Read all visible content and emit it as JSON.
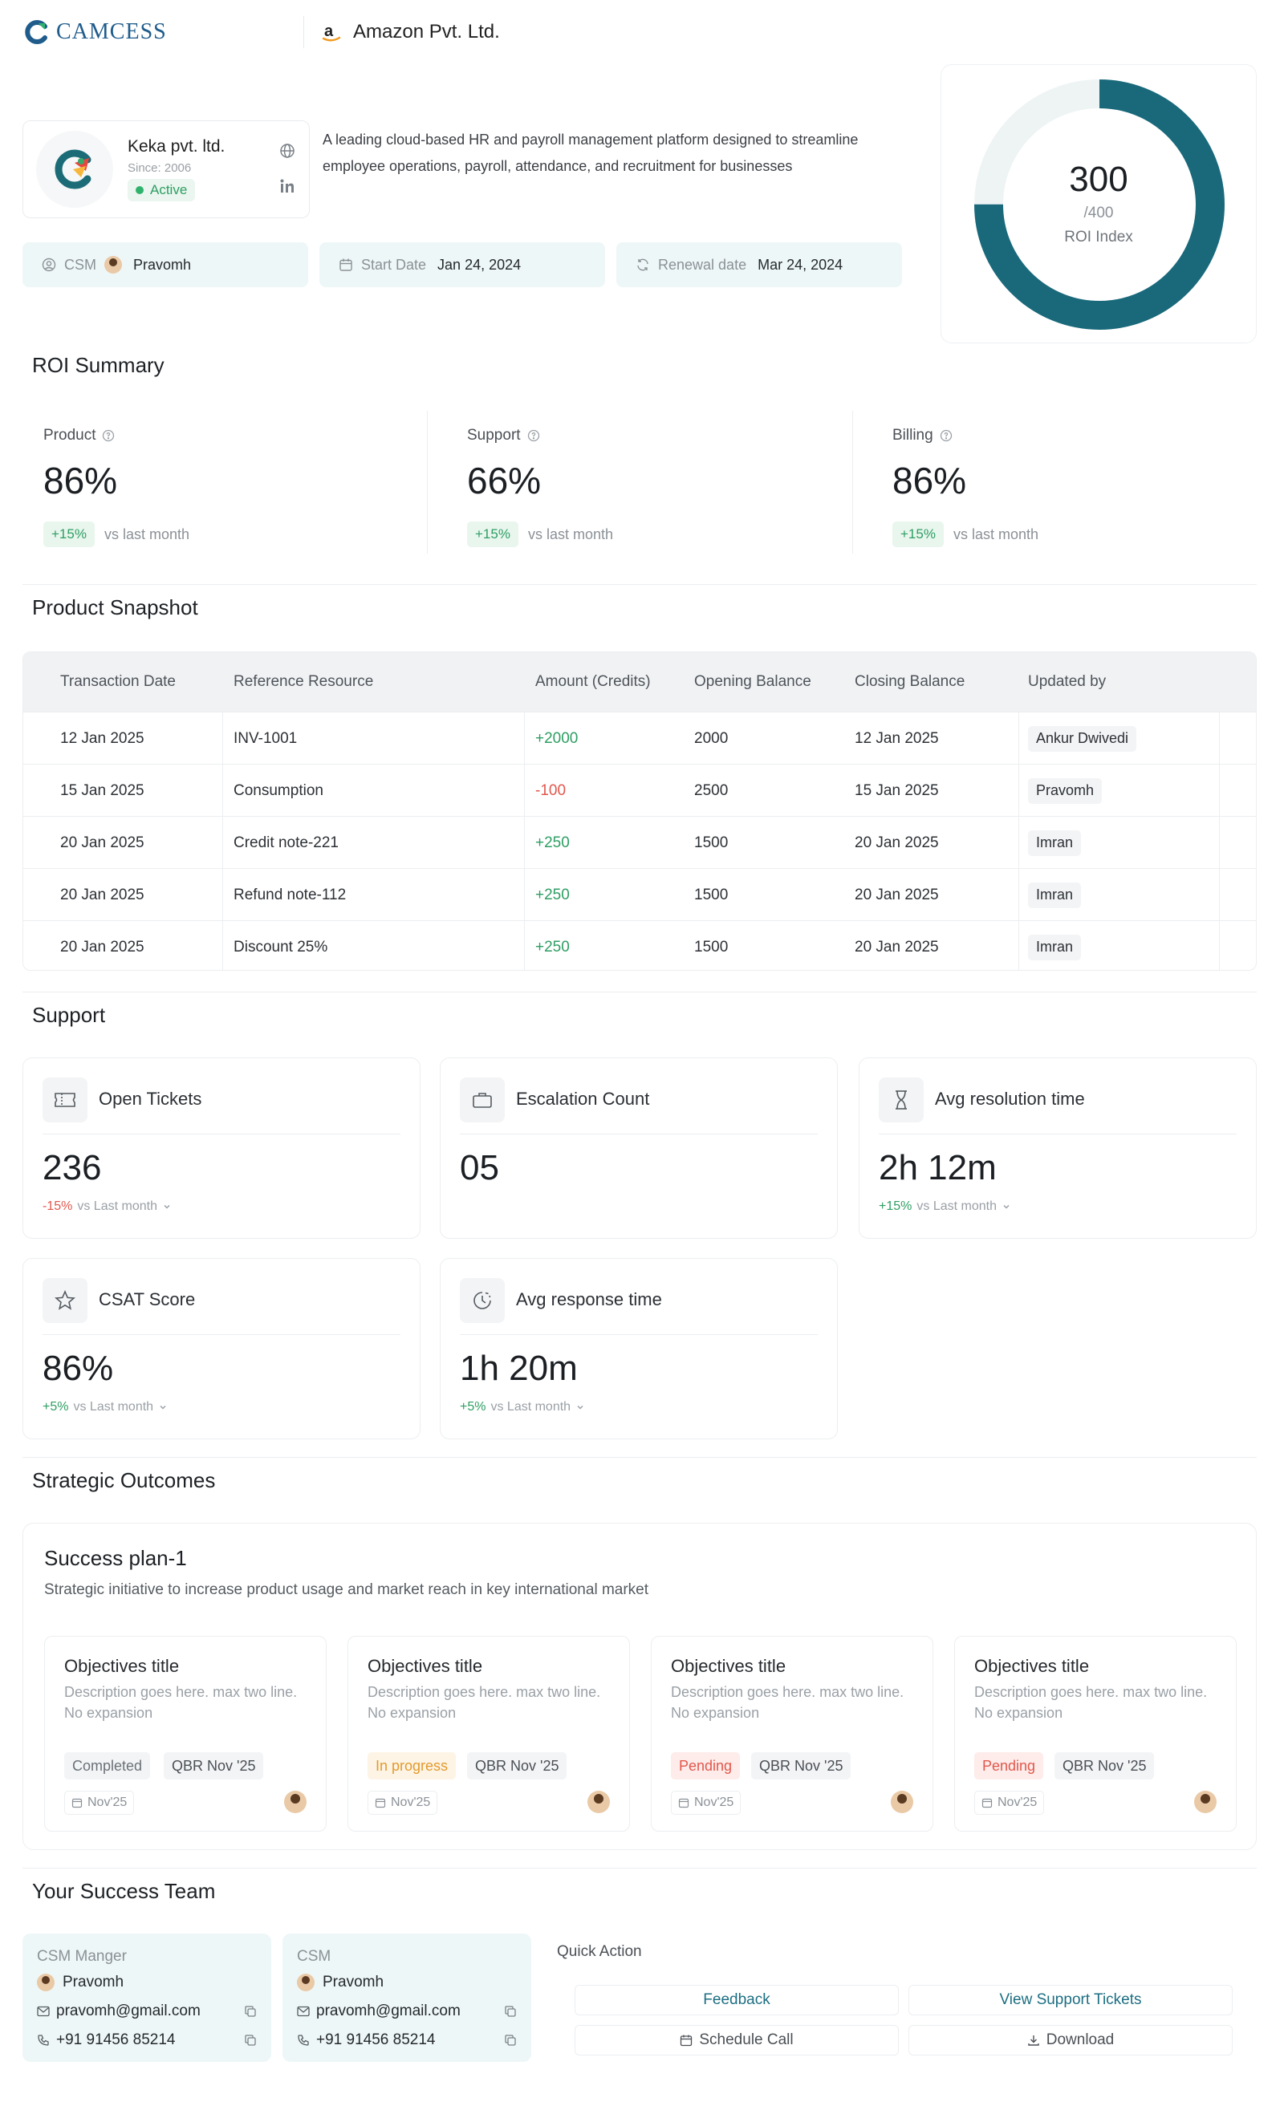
{
  "header": {
    "brand": "CAMCESS",
    "org_name": "Amazon Pvt. Ltd."
  },
  "company": {
    "name": "Keka pvt. ltd.",
    "since": "Since: 2006",
    "status": "Active",
    "description": "A leading cloud-based HR and payroll management platform designed to streamline employee operations, payroll, attendance, and recruitment for businesses"
  },
  "info_pills": {
    "csm_label": "CSM",
    "csm_value": "Pravomh",
    "start_label": "Start Date",
    "start_value": "Jan 24, 2024",
    "renewal_label": "Renewal date",
    "renewal_value": "Mar 24, 2024"
  },
  "roi_index": {
    "value": "300",
    "max": "/400",
    "label": "ROI Index",
    "fraction": 0.75,
    "colors": {
      "fill": "#19697b",
      "track": "#eef4f4"
    }
  },
  "roi_summary": {
    "title": "ROI Summary",
    "metrics": [
      {
        "label": "Product",
        "value": "86%",
        "delta": "+15%",
        "vs": "vs last month"
      },
      {
        "label": "Support",
        "value": "66%",
        "delta": "+15%",
        "vs": "vs last month"
      },
      {
        "label": "Billing",
        "value": "86%",
        "delta": "+15%",
        "vs": "vs last month"
      }
    ]
  },
  "product_snapshot": {
    "title": "Product Snapshot",
    "columns": [
      "Transaction Date",
      "Reference Resource",
      "Amount (Credits)",
      "Opening Balance",
      "Closing Balance",
      "Updated by"
    ],
    "rows": [
      {
        "date": "12 Jan 2025",
        "ref": "INV-1001",
        "amount": "+2000",
        "opening": "2000",
        "closing": "12 Jan 2025",
        "by": "Ankur Dwivedi"
      },
      {
        "date": "15 Jan 2025",
        "ref": "Consumption",
        "amount": "-100",
        "opening": "2500",
        "closing": "15 Jan 2025",
        "by": "Pravomh"
      },
      {
        "date": "20 Jan 2025",
        "ref": "Credit note-221",
        "amount": "+250",
        "opening": "1500",
        "closing": "20 Jan 2025",
        "by": "Imran"
      },
      {
        "date": "20 Jan 2025",
        "ref": "Refund note-112",
        "amount": "+250",
        "opening": "1500",
        "closing": "20 Jan 2025",
        "by": "Imran"
      },
      {
        "date": "20 Jan 2025",
        "ref": "Discount 25%",
        "amount": "+250",
        "opening": "1500",
        "closing": "20 Jan 2025",
        "by": "Imran"
      }
    ]
  },
  "support": {
    "title": "Support",
    "cards": [
      {
        "title": "Open Tickets",
        "icon": "ticket-icon",
        "value": "236",
        "delta": "-15%",
        "vs": "vs Last month"
      },
      {
        "title": "Escalation Count",
        "icon": "briefcase-icon",
        "value": "05"
      },
      {
        "title": "Avg resolution time",
        "icon": "hourglass-icon",
        "value": "2h 12m",
        "delta": "+15%",
        "vs": "vs Last month"
      },
      {
        "title": "CSAT Score",
        "icon": "star-icon",
        "value": "86%",
        "delta": "+5%",
        "vs": "vs Last month"
      },
      {
        "title": "Avg response time",
        "icon": "clock-icon",
        "value": "1h 20m",
        "delta": "+5%",
        "vs": "vs Last month"
      }
    ]
  },
  "strategic": {
    "title": "Strategic Outcomes",
    "plan_title": "Success plan-1",
    "plan_sub": "Strategic initiative to increase product usage and market reach in key international market",
    "objectives": [
      {
        "title": "Objectives title",
        "desc": "Description goes here. max two line. No expansion",
        "status": "Completed",
        "qbr": "QBR Nov '25",
        "date": "Nov'25"
      },
      {
        "title": "Objectives title",
        "desc": "Description goes here. max two line. No expansion",
        "status": "In progress",
        "qbr": "QBR Nov '25",
        "date": "Nov'25"
      },
      {
        "title": "Objectives title",
        "desc": "Description goes here. max two line. No expansion",
        "status": "Pending",
        "qbr": "QBR Nov '25",
        "date": "Nov'25"
      },
      {
        "title": "Objectives title",
        "desc": "Description goes here. max two line. No expansion",
        "status": "Pending",
        "qbr": "QBR Nov '25",
        "date": "Nov'25"
      }
    ]
  },
  "team": {
    "title": "Your Success Team",
    "members": [
      {
        "role": "CSM Manger",
        "name": "Pravomh",
        "email": "pravomh@gmail.com",
        "phone": "+91 91456 85214"
      },
      {
        "role": "CSM",
        "name": "Pravomh",
        "email": "pravomh@gmail.com",
        "phone": "+91 91456 85214"
      }
    ],
    "quick_action_title": "Quick Action",
    "actions": {
      "feedback": "Feedback",
      "view_tickets": "View Support Tickets",
      "schedule": "Schedule Call",
      "download": "Download"
    }
  }
}
